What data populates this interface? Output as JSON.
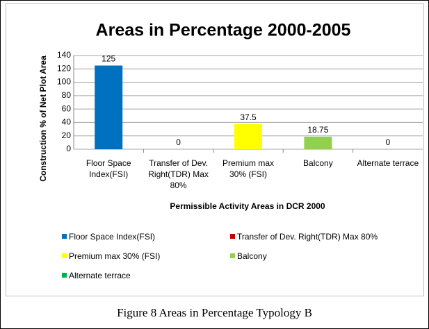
{
  "chart_data": {
    "type": "bar",
    "title": "Areas in Percentage 2000-2005",
    "y_label": "Construction % of Net Plot Area",
    "x_label": "Permissible Activity Areas in DCR 2000",
    "categories": [
      "Floor Space Index(FSI)",
      "Transfer of Dev. Right(TDR) Max 80%",
      "Premium max 30% (FSI)",
      "Balcony",
      "Alternate terrace"
    ],
    "values": [
      125,
      0,
      37.5,
      18.75,
      0
    ],
    "colors": [
      "#0070c0",
      "#c00000",
      "#ffff00",
      "#92d050",
      "#00b050"
    ],
    "ylim": [
      0,
      140
    ],
    "yticks": [
      0,
      20,
      40,
      60,
      80,
      100,
      120,
      140
    ],
    "grid": true,
    "caption": "Figure 8 Areas in Percentage Typology B"
  }
}
